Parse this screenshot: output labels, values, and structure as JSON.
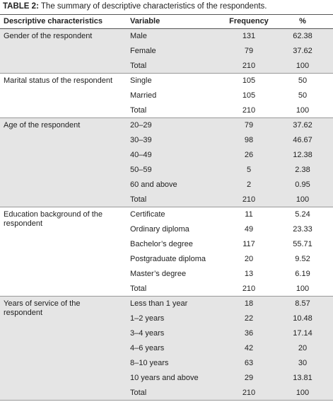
{
  "title": {
    "label": "TABLE 2:",
    "text": "The summary of descriptive characteristics of the respondents."
  },
  "table": {
    "header": [
      "Descriptive characteristics",
      "Variable",
      "Frequency",
      "%"
    ],
    "groups": [
      {
        "label": "Gender of the respondent",
        "rows": [
          [
            "Male",
            "131",
            "62.38"
          ],
          [
            "Female",
            "79",
            "37.62"
          ],
          [
            "Total",
            "210",
            "100"
          ]
        ]
      },
      {
        "label": "Marital status of the respondent",
        "rows": [
          [
            "Single",
            "105",
            "50"
          ],
          [
            "Married",
            "105",
            "50"
          ],
          [
            "Total",
            "210",
            "100"
          ]
        ]
      },
      {
        "label": "Age of the respondent",
        "rows": [
          [
            "20–29",
            "79",
            "37.62"
          ],
          [
            "30–39",
            "98",
            "46.67"
          ],
          [
            "40–49",
            "26",
            "12.38"
          ],
          [
            "50–59",
            "5",
            "2.38"
          ],
          [
            "60 and above",
            "2",
            "0.95"
          ],
          [
            "Total",
            "210",
            "100"
          ]
        ]
      },
      {
        "label": "Education background of the respondent",
        "rows": [
          [
            "Certificate",
            "11",
            "5.24"
          ],
          [
            "Ordinary diploma",
            "49",
            "23.33"
          ],
          [
            "Bachelor’s degree",
            "117",
            "55.71"
          ],
          [
            "Postgraduate diploma",
            "20",
            "9.52"
          ],
          [
            "Master’s degree",
            "13",
            "6.19"
          ],
          [
            "Total",
            "210",
            "100"
          ]
        ]
      },
      {
        "label": "Years of service of the respondent",
        "rows": [
          [
            "Less than 1 year",
            "18",
            "8.57"
          ],
          [
            "1–2 years",
            "22",
            "10.48"
          ],
          [
            "3–4 years",
            "36",
            "17.14"
          ],
          [
            "4–6 years",
            "42",
            "20"
          ],
          [
            "8–10 years",
            "63",
            "30"
          ],
          [
            "10 years and above",
            "29",
            "13.81"
          ],
          [
            "Total",
            "210",
            "100"
          ]
        ]
      }
    ]
  }
}
